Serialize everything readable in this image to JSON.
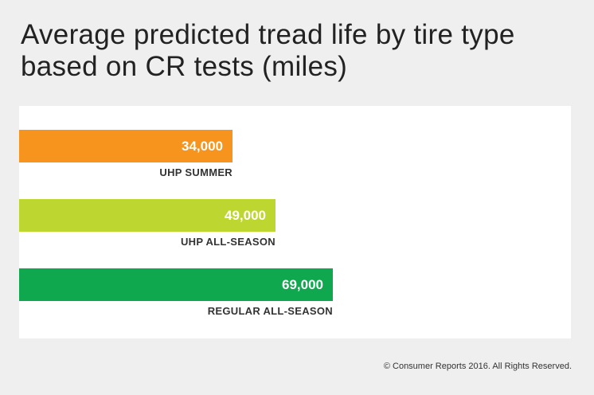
{
  "chart_data": {
    "type": "bar",
    "orientation": "horizontal",
    "title": "Average predicted tread life by tire type based on CR tests (miles)",
    "categories": [
      "UHP SUMMER",
      "UHP ALL-SEASON",
      "REGULAR ALL-SEASON"
    ],
    "values": [
      34000,
      49000,
      69000
    ],
    "value_labels": [
      "34,000",
      "49,000",
      "69,000"
    ],
    "colors": [
      "#f7941d",
      "#bed630",
      "#10a84f"
    ],
    "xlabel": "",
    "ylabel": "",
    "grid": false
  },
  "footer": {
    "copyright": "© Consumer Reports 2016. All Rights Reserved."
  }
}
